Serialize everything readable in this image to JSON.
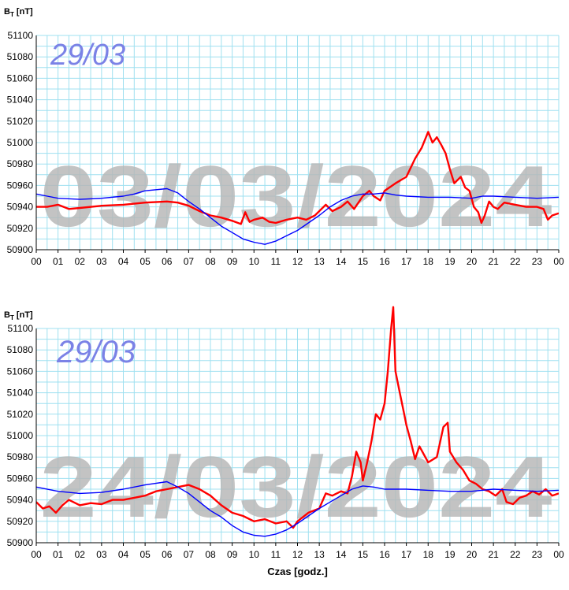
{
  "chart_data": [
    {
      "type": "line",
      "ylabel": "BT [nT]",
      "ylabel_main": "B",
      "ylabel_sub": "T",
      "ylabel_unit": " [nT]",
      "xlabel": "",
      "ylim": [
        50900,
        51100
      ],
      "yticks": [
        50900,
        50920,
        50940,
        50960,
        50980,
        51000,
        51020,
        51040,
        51060,
        51080,
        51100
      ],
      "xlim": [
        0,
        24
      ],
      "xticklabels": [
        "00",
        "01",
        "02",
        "03",
        "04",
        "05",
        "06",
        "07",
        "08",
        "09",
        "10",
        "11",
        "12",
        "13",
        "14",
        "15",
        "16",
        "17",
        "18",
        "19",
        "20",
        "21",
        "22",
        "23",
        "00"
      ],
      "grid": true,
      "watermark": "03/03/2024",
      "stamp": "29/03",
      "series": [
        {
          "color": "#ff0000",
          "points": [
            [
              0,
              50940
            ],
            [
              0.5,
              50940
            ],
            [
              1,
              50942
            ],
            [
              1.5,
              50938
            ],
            [
              2,
              50939
            ],
            [
              3,
              50941
            ],
            [
              4,
              50942
            ],
            [
              5,
              50944
            ],
            [
              6,
              50945
            ],
            [
              6.5,
              50944
            ],
            [
              7,
              50941
            ],
            [
              7.5,
              50936
            ],
            [
              8,
              50932
            ],
            [
              8.5,
              50930
            ],
            [
              9,
              50927
            ],
            [
              9.4,
              50924
            ],
            [
              9.6,
              50935
            ],
            [
              9.8,
              50926
            ],
            [
              10,
              50928
            ],
            [
              10.4,
              50930
            ],
            [
              10.7,
              50926
            ],
            [
              11,
              50925
            ],
            [
              11.5,
              50928
            ],
            [
              12,
              50930
            ],
            [
              12.4,
              50928
            ],
            [
              12.8,
              50932
            ],
            [
              13.3,
              50942
            ],
            [
              13.6,
              50936
            ],
            [
              14,
              50940
            ],
            [
              14.3,
              50945
            ],
            [
              14.6,
              50938
            ],
            [
              15,
              50950
            ],
            [
              15.3,
              50955
            ],
            [
              15.5,
              50950
            ],
            [
              15.8,
              50946
            ],
            [
              16,
              50955
            ],
            [
              16.5,
              50962
            ],
            [
              17,
              50968
            ],
            [
              17.4,
              50985
            ],
            [
              17.7,
              50995
            ],
            [
              18,
              51010
            ],
            [
              18.2,
              51000
            ],
            [
              18.4,
              51005
            ],
            [
              18.6,
              50998
            ],
            [
              18.8,
              50990
            ],
            [
              19,
              50975
            ],
            [
              19.2,
              50962
            ],
            [
              19.5,
              50968
            ],
            [
              19.7,
              50958
            ],
            [
              19.9,
              50955
            ],
            [
              20.1,
              50940
            ],
            [
              20.3,
              50935
            ],
            [
              20.45,
              50925
            ],
            [
              20.6,
              50932
            ],
            [
              20.8,
              50945
            ],
            [
              21,
              50940
            ],
            [
              21.2,
              50938
            ],
            [
              21.5,
              50944
            ],
            [
              22,
              50942
            ],
            [
              22.5,
              50940
            ],
            [
              23,
              50940
            ],
            [
              23.3,
              50938
            ],
            [
              23.5,
              50928
            ],
            [
              23.7,
              50932
            ],
            [
              24,
              50934
            ]
          ]
        },
        {
          "color": "#0000ff",
          "points": [
            [
              0,
              50952
            ],
            [
              0.5,
              50950
            ],
            [
              1,
              50948
            ],
            [
              2,
              50947
            ],
            [
              3,
              50948
            ],
            [
              4,
              50950
            ],
            [
              4.5,
              50952
            ],
            [
              5,
              50955
            ],
            [
              6,
              50957
            ],
            [
              6.5,
              50953
            ],
            [
              7,
              50945
            ],
            [
              7.5,
              50938
            ],
            [
              8,
              50930
            ],
            [
              8.5,
              50922
            ],
            [
              9,
              50916
            ],
            [
              9.5,
              50910
            ],
            [
              10,
              50907
            ],
            [
              10.5,
              50905
            ],
            [
              11,
              50908
            ],
            [
              11.5,
              50913
            ],
            [
              12,
              50918
            ],
            [
              12.5,
              50925
            ],
            [
              13,
              50932
            ],
            [
              13.5,
              50940
            ],
            [
              14,
              50946
            ],
            [
              14.5,
              50950
            ],
            [
              15,
              50952
            ],
            [
              15.5,
              50952
            ],
            [
              16,
              50953
            ],
            [
              16.5,
              50951
            ],
            [
              17,
              50950
            ],
            [
              18,
              50949
            ],
            [
              19,
              50949
            ],
            [
              20,
              50948
            ],
            [
              20.5,
              50950
            ],
            [
              21,
              50950
            ],
            [
              22,
              50949
            ],
            [
              23,
              50948
            ],
            [
              24,
              50949
            ]
          ]
        }
      ]
    },
    {
      "type": "line",
      "ylabel": "BT [nT]",
      "ylabel_main": "B",
      "ylabel_sub": "T",
      "ylabel_unit": " [nT]",
      "xlabel": "Czas [godz.]",
      "ylim": [
        50900,
        51100
      ],
      "yticks": [
        50900,
        50920,
        50940,
        50960,
        50980,
        51000,
        51020,
        51040,
        51060,
        51080,
        51100
      ],
      "xlim": [
        0,
        24
      ],
      "xticklabels": [
        "00",
        "01",
        "02",
        "03",
        "04",
        "05",
        "06",
        "07",
        "08",
        "09",
        "10",
        "11",
        "12",
        "13",
        "14",
        "15",
        "16",
        "17",
        "18",
        "19",
        "20",
        "21",
        "22",
        "23",
        "00"
      ],
      "grid": true,
      "watermark": "24/03/2024",
      "stamp": "29/03",
      "series": [
        {
          "color": "#ff0000",
          "points": [
            [
              0,
              50938
            ],
            [
              0.3,
              50932
            ],
            [
              0.6,
              50934
            ],
            [
              0.9,
              50928
            ],
            [
              1.2,
              50935
            ],
            [
              1.5,
              50940
            ],
            [
              2,
              50935
            ],
            [
              2.5,
              50937
            ],
            [
              3,
              50936
            ],
            [
              3.5,
              50940
            ],
            [
              4,
              50940
            ],
            [
              4.5,
              50942
            ],
            [
              5,
              50944
            ],
            [
              5.5,
              50948
            ],
            [
              6,
              50950
            ],
            [
              6.5,
              50952
            ],
            [
              7,
              50954
            ],
            [
              7.5,
              50950
            ],
            [
              8,
              50944
            ],
            [
              8.5,
              50935
            ],
            [
              9,
              50928
            ],
            [
              9.5,
              50925
            ],
            [
              10,
              50920
            ],
            [
              10.5,
              50922
            ],
            [
              11,
              50918
            ],
            [
              11.5,
              50920
            ],
            [
              11.8,
              50914
            ],
            [
              12,
              50920
            ],
            [
              12.5,
              50928
            ],
            [
              13,
              50932
            ],
            [
              13.3,
              50946
            ],
            [
              13.6,
              50944
            ],
            [
              14,
              50948
            ],
            [
              14.3,
              50946
            ],
            [
              14.5,
              50962
            ],
            [
              14.7,
              50985
            ],
            [
              14.9,
              50975
            ],
            [
              15,
              50958
            ],
            [
              15.2,
              50975
            ],
            [
              15.4,
              50995
            ],
            [
              15.6,
              51020
            ],
            [
              15.8,
              51015
            ],
            [
              16,
              51030
            ],
            [
              16.15,
              51060
            ],
            [
              16.3,
              51100
            ],
            [
              16.4,
              51120
            ],
            [
              16.5,
              51060
            ],
            [
              16.7,
              51040
            ],
            [
              16.9,
              51020
            ],
            [
              17,
              51010
            ],
            [
              17.2,
              50995
            ],
            [
              17.4,
              50978
            ],
            [
              17.6,
              50990
            ],
            [
              18,
              50975
            ],
            [
              18.4,
              50980
            ],
            [
              18.7,
              51008
            ],
            [
              18.9,
              51012
            ],
            [
              19,
              50985
            ],
            [
              19.3,
              50975
            ],
            [
              19.6,
              50968
            ],
            [
              19.9,
              50958
            ],
            [
              20.2,
              50955
            ],
            [
              20.5,
              50950
            ],
            [
              20.8,
              50948
            ],
            [
              21.1,
              50944
            ],
            [
              21.4,
              50950
            ],
            [
              21.6,
              50938
            ],
            [
              21.9,
              50936
            ],
            [
              22.2,
              50942
            ],
            [
              22.5,
              50944
            ],
            [
              22.8,
              50948
            ],
            [
              23.1,
              50945
            ],
            [
              23.4,
              50950
            ],
            [
              23.7,
              50944
            ],
            [
              24,
              50946
            ]
          ]
        },
        {
          "color": "#0000ff",
          "points": [
            [
              0,
              50952
            ],
            [
              1,
              50948
            ],
            [
              2,
              50946
            ],
            [
              3,
              50947
            ],
            [
              4,
              50950
            ],
            [
              5,
              50954
            ],
            [
              6,
              50957
            ],
            [
              6.5,
              50952
            ],
            [
              7,
              50946
            ],
            [
              7.5,
              50938
            ],
            [
              8,
              50930
            ],
            [
              8.5,
              50924
            ],
            [
              9,
              50916
            ],
            [
              9.5,
              50910
            ],
            [
              10,
              50907
            ],
            [
              10.5,
              50906
            ],
            [
              11,
              50908
            ],
            [
              11.5,
              50912
            ],
            [
              12,
              50918
            ],
            [
              12.5,
              50925
            ],
            [
              13,
              50932
            ],
            [
              13.5,
              50938
            ],
            [
              14,
              50944
            ],
            [
              14.5,
              50950
            ],
            [
              15,
              50953
            ],
            [
              15.5,
              50952
            ],
            [
              16,
              50950
            ],
            [
              17,
              50950
            ],
            [
              18,
              50949
            ],
            [
              19,
              50948
            ],
            [
              20,
              50948
            ],
            [
              21,
              50950
            ],
            [
              22,
              50949
            ],
            [
              23,
              50948
            ],
            [
              24,
              50949
            ]
          ]
        }
      ]
    }
  ]
}
